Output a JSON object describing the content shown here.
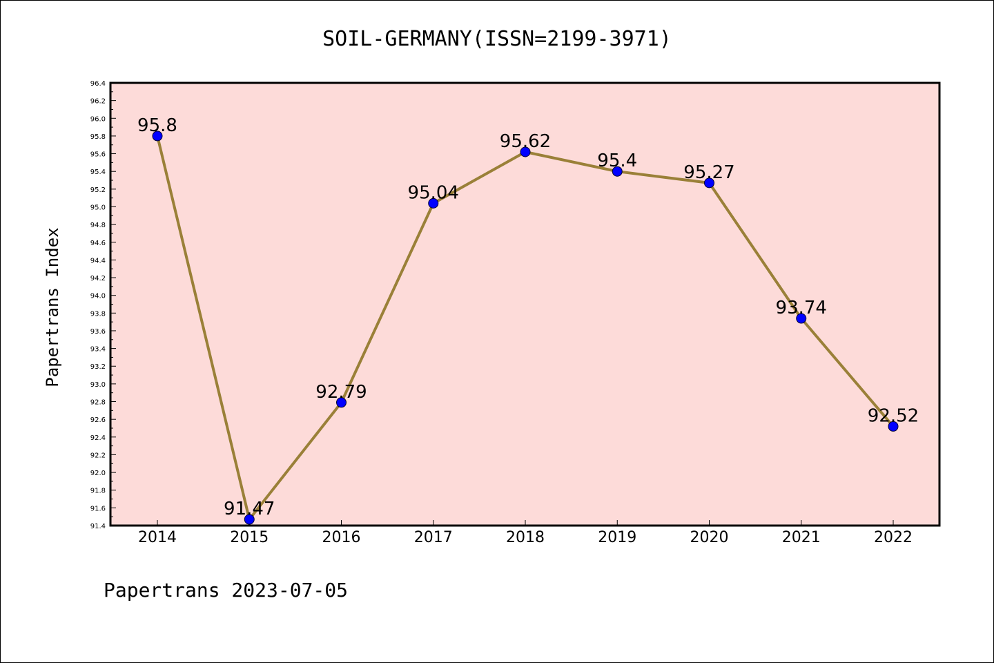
{
  "chart_data": {
    "type": "line",
    "title": "SOIL-GERMANY(ISSN=2199-3971)",
    "ylabel": "Papertrans Index",
    "xlabel": "",
    "x": [
      "2014",
      "2015",
      "2016",
      "2017",
      "2018",
      "2019",
      "2020",
      "2021",
      "2022"
    ],
    "series": [
      {
        "values": [
          95.8,
          91.47,
          92.79,
          95.04,
          95.62,
          95.4,
          95.27,
          93.74,
          92.52
        ],
        "labels": [
          "95.8",
          "91.47",
          "92.79",
          "95.04",
          "95.62",
          "95.4",
          "95.27",
          "93.74",
          "92.52"
        ]
      }
    ],
    "ylim": [
      91.4,
      96.4
    ],
    "yticks": [
      "91.4",
      "91.6",
      "91.8",
      "92.0",
      "92.2",
      "92.4",
      "92.6",
      "92.8",
      "93.0",
      "93.2",
      "93.4",
      "93.6",
      "93.8",
      "94.0",
      "94.2",
      "94.4",
      "94.6",
      "94.8",
      "95.0",
      "95.2",
      "95.4",
      "95.6",
      "95.8",
      "96.0",
      "96.2",
      "96.4"
    ],
    "grid": false,
    "colors": {
      "plot_background": "#fddbd9",
      "line": "#9a8038",
      "marker": "#0000ff"
    }
  },
  "footer": "Papertrans 2023-07-05"
}
